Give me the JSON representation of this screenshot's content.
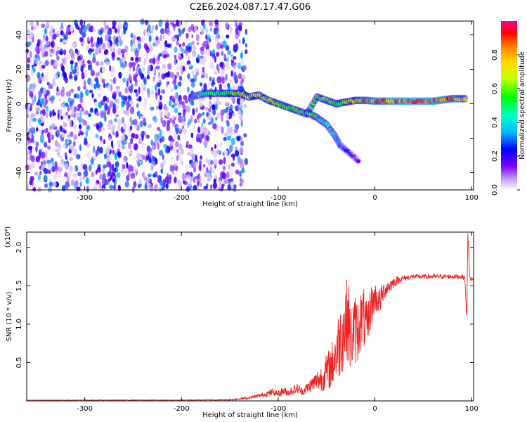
{
  "title": "C2E6.2024.087.17.47.G06",
  "chart_data": [
    {
      "type": "heatmap",
      "xlabel": "Height of straight line (km)",
      "ylabel": "Frequency (Hz)",
      "xlim": [
        -360,
        102
      ],
      "ylim": [
        -50,
        48
      ],
      "x_ticks": [
        -300,
        -200,
        -100,
        0,
        100
      ],
      "y_ticks": [
        -40,
        -20,
        0,
        20,
        40
      ],
      "colorbar": {
        "label": "Normalized spectral amplitude",
        "range": [
          0,
          1
        ],
        "ticks": [
          0.0,
          0.2,
          0.4,
          0.6,
          0.8
        ],
        "colors": [
          "#ffffff",
          "#c9a6f5",
          "#7b00ff",
          "#0000ff",
          "#00b7ff",
          "#00ffcc",
          "#00ff00",
          "#c8ff00",
          "#ffd800",
          "#ff8000",
          "#ff0000",
          "#ff0090"
        ]
      },
      "noise_region": {
        "x": [
          -360,
          -133
        ],
        "freq": [
          -50,
          48
        ],
        "amplitude": [
          0.02,
          0.35
        ]
      },
      "ridge": [
        {
          "x": -190,
          "freq": 4,
          "amp": 0.3
        },
        {
          "x": -175,
          "freq": 6,
          "amp": 0.45
        },
        {
          "x": -160,
          "freq": 6,
          "amp": 0.5
        },
        {
          "x": -150,
          "freq": 6,
          "amp": 0.55
        },
        {
          "x": -140,
          "freq": 6,
          "amp": 0.6
        },
        {
          "x": -130,
          "freq": 4,
          "amp": 0.65
        },
        {
          "x": -120,
          "freq": 5,
          "amp": 0.7
        },
        {
          "x": -110,
          "freq": 2,
          "amp": 0.65
        },
        {
          "x": -100,
          "freq": 0,
          "amp": 0.6
        },
        {
          "x": -90,
          "freq": -2,
          "amp": 0.55
        },
        {
          "x": -80,
          "freq": -4,
          "amp": 0.55
        },
        {
          "x": -70,
          "freq": -6,
          "amp": 0.5
        },
        {
          "x": -60,
          "freq": 4,
          "amp": 0.55
        },
        {
          "x": -50,
          "freq": 2,
          "amp": 0.55
        },
        {
          "x": -40,
          "freq": 0,
          "amp": 0.55
        },
        {
          "x": -30,
          "freq": 1,
          "amp": 0.6
        },
        {
          "x": -20,
          "freq": 2,
          "amp": 0.7
        },
        {
          "x": -10,
          "freq": 2,
          "amp": 0.8
        },
        {
          "x": 0,
          "freq": 1.5,
          "amp": 0.85
        },
        {
          "x": 20,
          "freq": 1.5,
          "amp": 0.9
        },
        {
          "x": 40,
          "freq": 1.5,
          "amp": 0.95
        },
        {
          "x": 60,
          "freq": 1.5,
          "amp": 0.9
        },
        {
          "x": 80,
          "freq": 3,
          "amp": 0.8
        },
        {
          "x": 95,
          "freq": 3,
          "amp": 0.75
        }
      ],
      "branch": [
        {
          "x": -70,
          "freq": -5,
          "amp": 0.55
        },
        {
          "x": -60,
          "freq": -8,
          "amp": 0.5
        },
        {
          "x": -50,
          "freq": -12,
          "amp": 0.45
        },
        {
          "x": -42,
          "freq": -18,
          "amp": 0.4
        },
        {
          "x": -36,
          "freq": -24,
          "amp": 0.3
        },
        {
          "x": -15,
          "freq": -34,
          "amp": 0.15
        }
      ]
    },
    {
      "type": "line",
      "xlabel": "Height of straight line (km)",
      "ylabel": "SNR (10 * v/v)",
      "multiplier_label": "(x10⁴)",
      "xlim": [
        -360,
        102
      ],
      "ylim": [
        0,
        2.2
      ],
      "x_ticks": [
        -300,
        -200,
        -100,
        0,
        100
      ],
      "y_ticks": [
        0.5,
        1.0,
        1.5,
        2.0
      ],
      "series": [
        {
          "color": "#ee2222",
          "x": [
            -360,
            -300,
            -200,
            -150,
            -130,
            -115,
            -105,
            -100,
            -95,
            -90,
            -80,
            -75,
            -65,
            -55,
            -45,
            -38,
            -32,
            -28,
            -25,
            -22,
            -18,
            -15,
            -12,
            -8,
            -5,
            0,
            5,
            10,
            15,
            20,
            25,
            30,
            40,
            60,
            80,
            90,
            93,
            95,
            96,
            98,
            100,
            102
          ],
          "y": [
            0.01,
            0.01,
            0.01,
            0.015,
            0.04,
            0.08,
            0.12,
            0.09,
            0.13,
            0.11,
            0.16,
            0.12,
            0.22,
            0.3,
            0.45,
            0.7,
            0.95,
            1.1,
            0.8,
            0.95,
            0.9,
            1.05,
            1.1,
            0.9,
            1.2,
            1.35,
            1.3,
            1.45,
            1.5,
            1.55,
            1.58,
            1.6,
            1.62,
            1.62,
            1.62,
            1.62,
            1.6,
            1.05,
            2.2,
            1.6,
            1.59,
            1.58
          ],
          "spread": [
            0.0,
            0.005,
            0.005,
            0.01,
            0.02,
            0.03,
            0.05,
            0.04,
            0.06,
            0.05,
            0.07,
            0.05,
            0.1,
            0.18,
            0.3,
            0.45,
            0.55,
            0.55,
            0.5,
            0.45,
            0.45,
            0.4,
            0.4,
            0.35,
            0.3,
            0.2,
            0.18,
            0.12,
            0.1,
            0.07,
            0.05,
            0.04,
            0.03,
            0.03,
            0.03,
            0.03,
            0.03,
            0.0,
            0.0,
            0.04,
            0.03,
            0.02
          ]
        }
      ]
    }
  ]
}
